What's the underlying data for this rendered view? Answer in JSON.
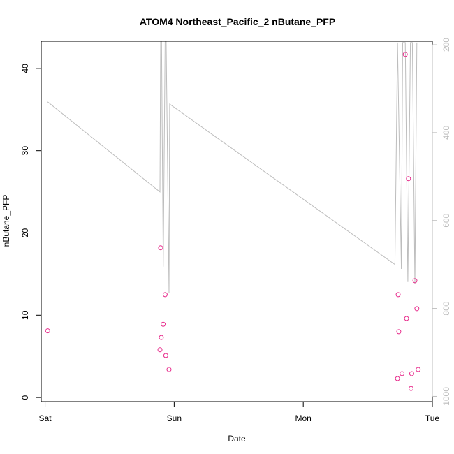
{
  "chart_data": {
    "type": "scatter",
    "title": "ATOM4 Northeast_Pacific_2 nButane_PFP",
    "xlabel": "Date",
    "ylabel": "nButane_PFP",
    "xlim": [
      -0.03,
      3.0
    ],
    "ylim": [
      -0.5,
      43.3
    ],
    "x_ticks": [
      {
        "value": 0,
        "label": "Sat"
      },
      {
        "value": 1,
        "label": "Sun"
      },
      {
        "value": 2,
        "label": "Mon"
      },
      {
        "value": 3,
        "label": "Tue"
      }
    ],
    "y_ticks": [
      0,
      10,
      20,
      30,
      40
    ],
    "y_tick_labels": [
      "0",
      "10",
      "20",
      "30",
      "40"
    ],
    "secondary_axis": {
      "side": "right",
      "ylim": [
        1012,
        192
      ],
      "ticks": [
        200,
        400,
        600,
        800,
        1000
      ],
      "tick_labels": [
        "200",
        "400",
        "600",
        "800",
        "1000"
      ],
      "color": "#bdbdbd"
    },
    "grid": false,
    "colors": {
      "points": "#e7298a",
      "pressure_line": "#bdbdbd",
      "frame": "#000000"
    },
    "series": [
      {
        "values_x": [
          0.02,
          0.89,
          0.895,
          0.9,
          0.915,
          0.93,
          0.935,
          0.96,
          2.73,
          2.735,
          2.74,
          2.765,
          2.79,
          2.8,
          2.815,
          2.835,
          2.84,
          2.865,
          2.88,
          2.89
        ],
        "values_y": [
          8.1,
          5.8,
          18.2,
          7.3,
          8.9,
          12.5,
          5.1,
          3.4,
          2.3,
          12.5,
          8.0,
          2.9,
          41.7,
          9.6,
          26.6,
          1.1,
          2.9,
          14.2,
          10.8,
          3.4
        ]
      },
      {
        "axis": "secondary",
        "values_x": [
          0.02,
          0.89,
          0.895,
          0.9,
          0.915,
          0.93,
          0.935,
          0.96,
          0.965,
          2.71,
          2.73,
          2.76,
          2.77,
          2.79,
          2.81,
          2.83,
          2.845,
          2.865,
          2.88
        ],
        "values_y": [
          330,
          535,
          195,
          110,
          705,
          195,
          110,
          765,
          335,
          700,
          195,
          710,
          195,
          195,
          740,
          195,
          195,
          745,
          195
        ]
      }
    ]
  }
}
